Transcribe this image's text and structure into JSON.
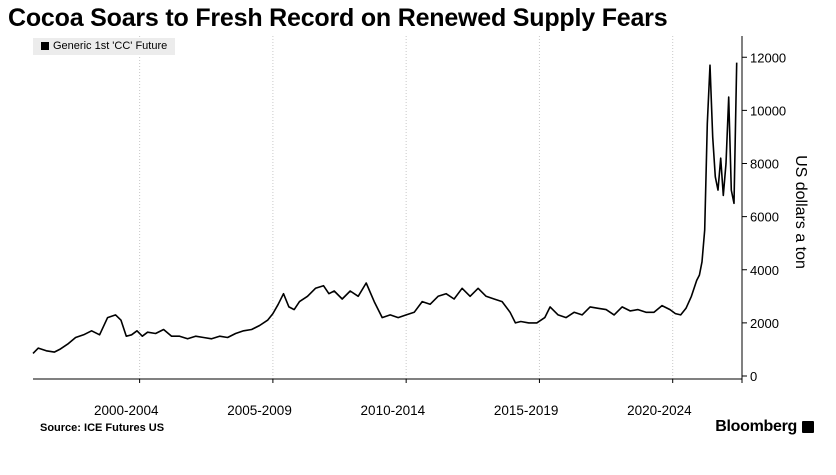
{
  "header": {
    "title": "Cocoa Soars to Fresh Record on Renewed Supply Fears"
  },
  "footer": {
    "source": "Source: ICE Futures US",
    "brand": "Bloomberg"
  },
  "chart_data": {
    "type": "line",
    "title": "Cocoa Soars to Fresh Record on Renewed Supply Fears",
    "ylabel": "US dollars a ton",
    "xlabel": "",
    "ylim": [
      0,
      12800
    ],
    "xlim": [
      1999.0,
      2025.6
    ],
    "yticks": [
      0,
      2000,
      4000,
      6000,
      8000,
      10000,
      12000
    ],
    "ytick_labels": [
      "0",
      "2000",
      "4000",
      "6000",
      "8000",
      "10000",
      "12000"
    ],
    "xtick_labels": [
      {
        "label": "2000-2004",
        "center": 2002.5
      },
      {
        "label": "2005-2009",
        "center": 2007.5
      },
      {
        "label": "2010-2014",
        "center": 2012.5
      },
      {
        "label": "2015-2019",
        "center": 2017.5
      },
      {
        "label": "2020-2024",
        "center": 2022.5
      }
    ],
    "x_gridlines": [
      2003,
      2008,
      2013,
      2018,
      2023
    ],
    "grid": "vertical dotted",
    "legend": {
      "position": "top-left",
      "entries": [
        "Generic 1st 'CC' Future"
      ]
    },
    "series": [
      {
        "name": "Generic 1st 'CC' Future",
        "color": "#000000",
        "x": [
          1999.0,
          1999.2,
          1999.5,
          1999.8,
          2000.0,
          2000.3,
          2000.6,
          2000.9,
          2001.2,
          2001.5,
          2001.8,
          2002.1,
          2002.3,
          2002.5,
          2002.7,
          2002.9,
          2003.1,
          2003.3,
          2003.6,
          2003.9,
          2004.2,
          2004.5,
          2004.8,
          2005.1,
          2005.4,
          2005.7,
          2006.0,
          2006.3,
          2006.6,
          2006.9,
          2007.2,
          2007.5,
          2007.8,
          2008.0,
          2008.2,
          2008.4,
          2008.6,
          2008.8,
          2009.0,
          2009.3,
          2009.6,
          2009.9,
          2010.1,
          2010.3,
          2010.6,
          2010.9,
          2011.2,
          2011.5,
          2011.8,
          2012.1,
          2012.4,
          2012.7,
          2013.0,
          2013.3,
          2013.6,
          2013.9,
          2014.2,
          2014.5,
          2014.8,
          2015.1,
          2015.4,
          2015.7,
          2016.0,
          2016.3,
          2016.6,
          2016.9,
          2017.1,
          2017.3,
          2017.6,
          2017.9,
          2018.2,
          2018.4,
          2018.7,
          2019.0,
          2019.3,
          2019.6,
          2019.9,
          2020.2,
          2020.5,
          2020.8,
          2021.1,
          2021.4,
          2021.7,
          2022.0,
          2022.3,
          2022.6,
          2022.9,
          2023.1,
          2023.3,
          2023.5,
          2023.7,
          2023.9,
          2024.0,
          2024.1,
          2024.2,
          2024.3,
          2024.4,
          2024.5,
          2024.6,
          2024.7,
          2024.8,
          2024.9,
          2025.0,
          2025.1,
          2025.2,
          2025.3,
          2025.4
        ],
        "values": [
          850,
          1050,
          950,
          900,
          1000,
          1200,
          1450,
          1550,
          1700,
          1550,
          2200,
          2300,
          2100,
          1500,
          1550,
          1700,
          1500,
          1650,
          1600,
          1750,
          1500,
          1500,
          1400,
          1500,
          1450,
          1400,
          1500,
          1450,
          1600,
          1700,
          1750,
          1900,
          2100,
          2350,
          2700,
          3100,
          2600,
          2500,
          2800,
          3000,
          3300,
          3400,
          3100,
          3200,
          2900,
          3200,
          3000,
          3500,
          2800,
          2200,
          2300,
          2200,
          2300,
          2400,
          2800,
          2700,
          3000,
          3100,
          2900,
          3300,
          3000,
          3300,
          3000,
          2900,
          2800,
          2400,
          2000,
          2050,
          2000,
          2000,
          2200,
          2600,
          2300,
          2200,
          2400,
          2300,
          2600,
          2550,
          2500,
          2300,
          2600,
          2450,
          2500,
          2400,
          2400,
          2650,
          2500,
          2350,
          2300,
          2550,
          3000,
          3600,
          3800,
          4300,
          5500,
          9500,
          11700,
          9000,
          7500,
          7000,
          8200,
          6800,
          8000,
          10500,
          7000,
          6500,
          11800
        ]
      }
    ]
  }
}
